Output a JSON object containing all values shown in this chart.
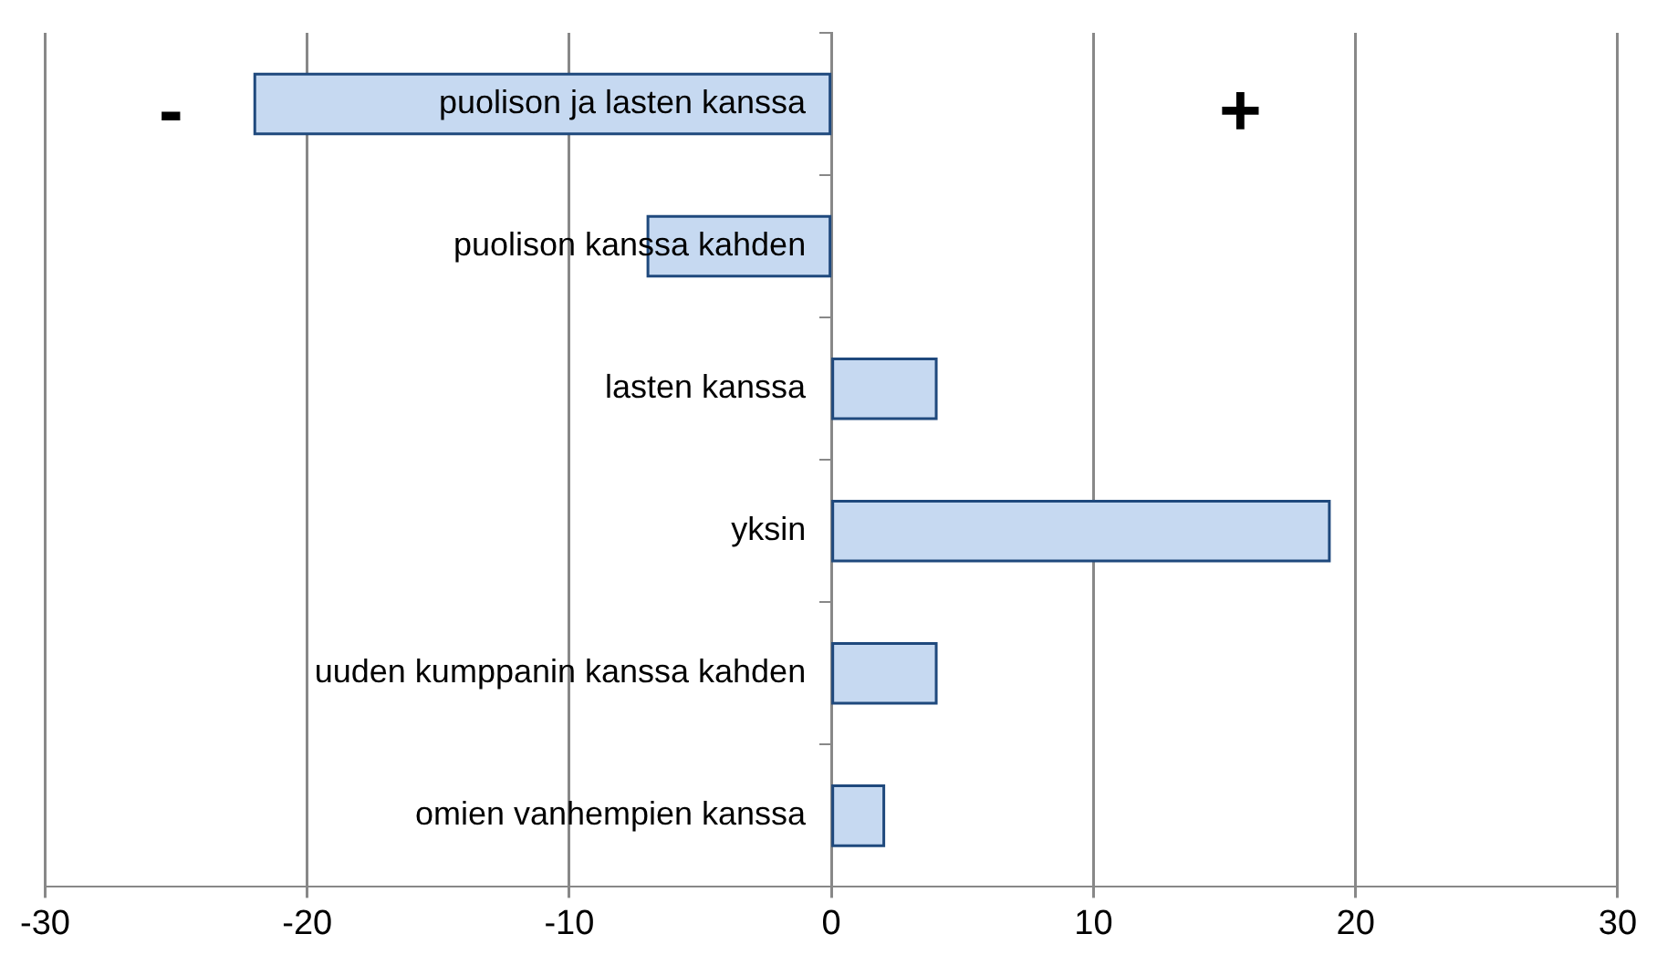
{
  "chart_data": {
    "type": "bar",
    "orientation": "horizontal",
    "categories": [
      "puolison ja lasten kanssa",
      "puolison kanssa kahden",
      "lasten kanssa",
      "yksin",
      "uuden kumppanin kanssa kahden",
      "omien vanhempien kanssa"
    ],
    "values": [
      -22,
      -7,
      4,
      19,
      4,
      2
    ],
    "color": "#c6d9f1",
    "xlim": [
      -30,
      30
    ],
    "xticks": [
      -30,
      -20,
      -10,
      0,
      10,
      20,
      30
    ],
    "grid": "x",
    "legend": false,
    "annotations": [
      "-",
      "+"
    ]
  }
}
